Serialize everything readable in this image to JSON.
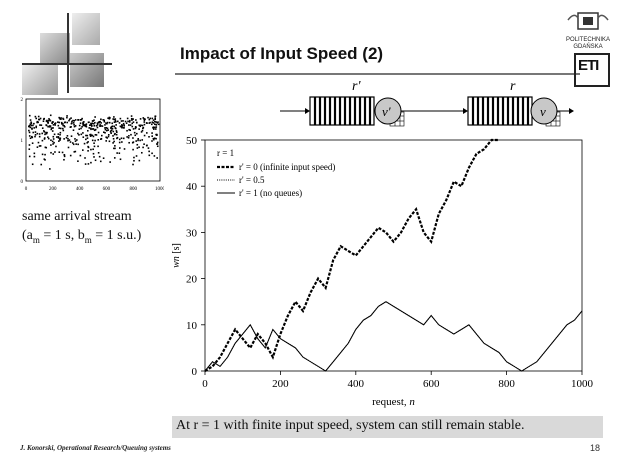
{
  "slide": {
    "title": "Impact of Input Speed (2)",
    "footer_author": "J. Konorski, Operational Research/Queuing systems",
    "page_number": "18",
    "conclusion": "At r = 1 with finite input speed, system can still remain stable.",
    "left_text": {
      "line1": "same arrival stream",
      "line2_prefix": "(a",
      "line2_sub1": "m",
      "line2_mid": " = 1 s, b",
      "line2_sub2": "m",
      "line2_suffix": " = 1 s.u.)"
    },
    "logo": {
      "line1": "POLITECHNIKA",
      "line2": "GDAŃSKA",
      "mark": "ETI"
    },
    "diagram": {
      "server1_label": "v'",
      "server2_label": "v",
      "rate1_label": "r'",
      "rate2_label": "r"
    }
  },
  "chart_data": [
    {
      "type": "scatter",
      "title": "",
      "xlabel": "",
      "ylabel": "",
      "xlim": [
        0,
        1000
      ],
      "ylim": [
        0,
        2
      ],
      "x_ticks": [
        0,
        200,
        400,
        600,
        800,
        1000
      ],
      "y_ticks": [
        0,
        1,
        2
      ],
      "series": [
        {
          "values": []
        }
      ]
    },
    {
      "type": "line",
      "title": "",
      "xlabel": "request, n",
      "ylabel": "wn [s]",
      "xlim": [
        0,
        1000
      ],
      "ylim": [
        0,
        50
      ],
      "x_ticks": [
        0,
        200,
        400,
        600,
        800,
        1000
      ],
      "y_ticks": [
        0,
        10,
        20,
        30,
        40,
        50
      ],
      "legend_title": "r = 1",
      "legend_placement": "top-left",
      "series": [
        {
          "name": "r' = 0 (infinite input speed)",
          "style": "dashed",
          "x": [
            0,
            20,
            40,
            60,
            80,
            100,
            120,
            140,
            160,
            180,
            200,
            220,
            240,
            260,
            280,
            300,
            320,
            340,
            360,
            380,
            400,
            420,
            440,
            460,
            480,
            500,
            520,
            540,
            560,
            580,
            600,
            620,
            640,
            660,
            680,
            700,
            720,
            740,
            760,
            780
          ],
          "values": [
            0,
            1,
            3,
            6,
            9,
            7,
            5,
            8,
            6,
            3,
            8,
            12,
            15,
            13,
            17,
            20,
            18,
            24,
            27,
            26,
            25,
            27,
            29,
            31,
            30,
            28,
            30,
            33,
            35,
            30,
            28,
            34,
            37,
            41,
            40,
            44,
            47,
            48,
            50,
            50
          ]
        },
        {
          "name": "r' = 0.5",
          "style": "dotted",
          "x": [
            0,
            20,
            40,
            60,
            80,
            100,
            120,
            140,
            160,
            180,
            200,
            220,
            240,
            260,
            280,
            300,
            320,
            340,
            360,
            380,
            400,
            420,
            440,
            460,
            480,
            500,
            520,
            540,
            560,
            580,
            600,
            620,
            640,
            660,
            680,
            700,
            720,
            740,
            760,
            780,
            800,
            820,
            840,
            860,
            880,
            900,
            920,
            940,
            960,
            980,
            1000
          ],
          "values": [
            0,
            2,
            1,
            3,
            6,
            8,
            10,
            7,
            5,
            9,
            7,
            6,
            5,
            3,
            2,
            1,
            0,
            2,
            4,
            6,
            9,
            11,
            12,
            14,
            15,
            14,
            13,
            12,
            11,
            10,
            12,
            10,
            9,
            8,
            9,
            10,
            8,
            6,
            5,
            4,
            2,
            1,
            0,
            1,
            2,
            4,
            6,
            8,
            10,
            11,
            13
          ]
        },
        {
          "name": "r' = 1 (no queues)",
          "style": "solid",
          "x": [
            0,
            20,
            40,
            60,
            80,
            100,
            120,
            140,
            160,
            180,
            200,
            220,
            240,
            260,
            280,
            300,
            320,
            340,
            360,
            380,
            400,
            420,
            440,
            460,
            480,
            500,
            520,
            540,
            560,
            580,
            600,
            620,
            640,
            660,
            680,
            700,
            720,
            740,
            760,
            780,
            800,
            820,
            840,
            860,
            880,
            900,
            920,
            940,
            960,
            980,
            1000
          ],
          "values": [
            0,
            2,
            1,
            3,
            6,
            8,
            10,
            7,
            5,
            9,
            7,
            6,
            5,
            3,
            2,
            1,
            0,
            2,
            4,
            6,
            9,
            11,
            12,
            14,
            15,
            14,
            13,
            12,
            11,
            10,
            12,
            10,
            9,
            8,
            9,
            10,
            8,
            6,
            5,
            4,
            2,
            1,
            0,
            1,
            2,
            4,
            6,
            8,
            10,
            11,
            13
          ]
        }
      ]
    }
  ]
}
